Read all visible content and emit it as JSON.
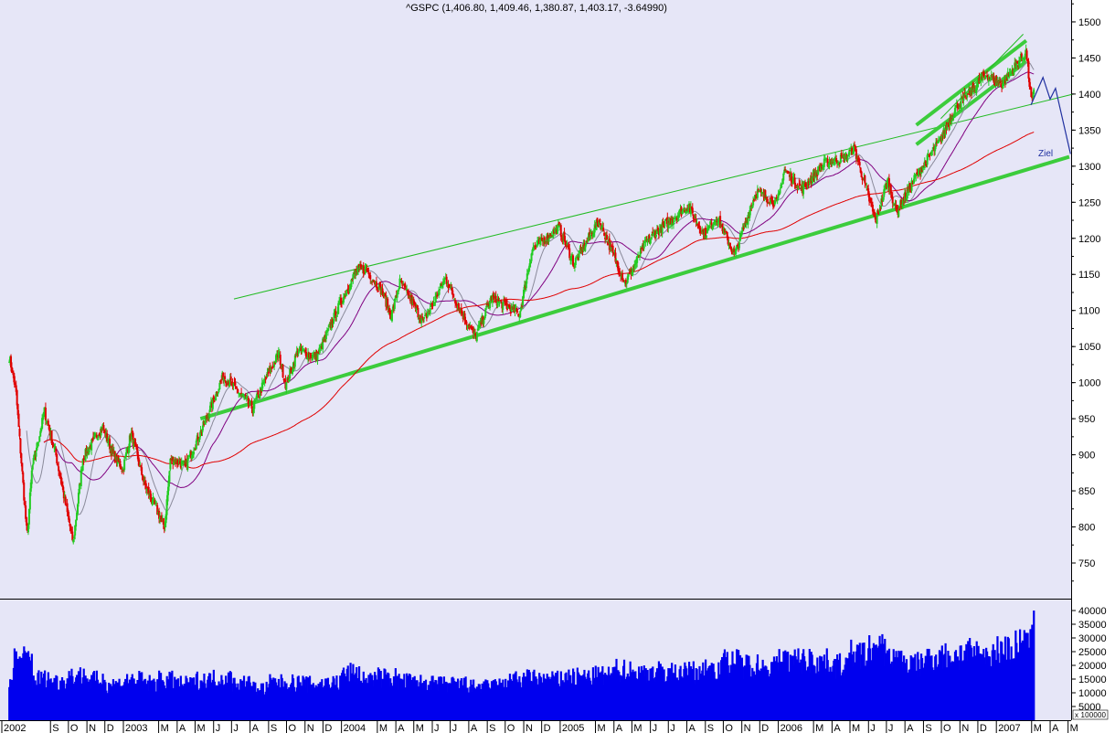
{
  "chart_data": {
    "type": "candlestick",
    "title": "^GSPC (1,406.80, 1,409.46, 1,380.87, 1,403.17, -3.64990)",
    "price_axis": {
      "ticks": [
        750,
        800,
        850,
        900,
        950,
        1000,
        1050,
        1100,
        1150,
        1200,
        1250,
        1300,
        1350,
        1400,
        1450,
        1500
      ],
      "range": [
        705,
        1530
      ],
      "position": "right"
    },
    "volume_axis": {
      "ticks": [
        5000,
        10000,
        15000,
        20000,
        25000,
        30000,
        35000,
        40000
      ],
      "multiplier_label": "x 100000",
      "range": [
        0,
        43000
      ]
    },
    "x_axis": {
      "range": [
        "2002-06-24",
        "2007-05-31"
      ],
      "labels": [
        {
          "date": "2002-07-01",
          "text": "2002"
        },
        {
          "date": "2002-09-01",
          "text": "S"
        },
        {
          "date": "2002-10-01",
          "text": "O"
        },
        {
          "date": "2002-11-01",
          "text": "N"
        },
        {
          "date": "2002-12-01",
          "text": "D"
        },
        {
          "date": "2003-01-01",
          "text": "2003"
        },
        {
          "date": "2003-03-01",
          "text": "M"
        },
        {
          "date": "2003-04-01",
          "text": "A"
        },
        {
          "date": "2003-05-01",
          "text": "M"
        },
        {
          "date": "2003-06-01",
          "text": "J"
        },
        {
          "date": "2003-07-01",
          "text": "J"
        },
        {
          "date": "2003-08-01",
          "text": "A"
        },
        {
          "date": "2003-09-01",
          "text": "S"
        },
        {
          "date": "2003-10-01",
          "text": "O"
        },
        {
          "date": "2003-11-01",
          "text": "N"
        },
        {
          "date": "2003-12-01",
          "text": "D"
        },
        {
          "date": "2004-01-01",
          "text": "2004"
        },
        {
          "date": "2004-03-01",
          "text": "M"
        },
        {
          "date": "2004-04-01",
          "text": "A"
        },
        {
          "date": "2004-05-01",
          "text": "M"
        },
        {
          "date": "2004-06-01",
          "text": "J"
        },
        {
          "date": "2004-07-01",
          "text": "J"
        },
        {
          "date": "2004-08-01",
          "text": "A"
        },
        {
          "date": "2004-09-01",
          "text": "S"
        },
        {
          "date": "2004-10-01",
          "text": "O"
        },
        {
          "date": "2004-11-01",
          "text": "N"
        },
        {
          "date": "2004-12-01",
          "text": "D"
        },
        {
          "date": "2005-01-01",
          "text": "2005"
        },
        {
          "date": "2005-03-01",
          "text": "M"
        },
        {
          "date": "2005-04-01",
          "text": "A"
        },
        {
          "date": "2005-05-01",
          "text": "M"
        },
        {
          "date": "2005-06-01",
          "text": "J"
        },
        {
          "date": "2005-07-01",
          "text": "J"
        },
        {
          "date": "2005-08-01",
          "text": "A"
        },
        {
          "date": "2005-09-01",
          "text": "S"
        },
        {
          "date": "2005-10-01",
          "text": "O"
        },
        {
          "date": "2005-11-01",
          "text": "N"
        },
        {
          "date": "2005-12-01",
          "text": "D"
        },
        {
          "date": "2006-01-01",
          "text": "2006"
        },
        {
          "date": "2006-03-01",
          "text": "M"
        },
        {
          "date": "2006-04-01",
          "text": "A"
        },
        {
          "date": "2006-05-01",
          "text": "M"
        },
        {
          "date": "2006-06-01",
          "text": "J"
        },
        {
          "date": "2006-07-01",
          "text": "J"
        },
        {
          "date": "2006-08-01",
          "text": "A"
        },
        {
          "date": "2006-09-01",
          "text": "S"
        },
        {
          "date": "2006-10-01",
          "text": "O"
        },
        {
          "date": "2006-11-01",
          "text": "N"
        },
        {
          "date": "2006-12-01",
          "text": "D"
        },
        {
          "date": "2007-01-01",
          "text": "2007"
        },
        {
          "date": "2007-03-01",
          "text": "M"
        },
        {
          "date": "2007-04-01",
          "text": "A"
        },
        {
          "date": "2007-05-01",
          "text": "M"
        }
      ]
    },
    "close": [
      [
        "2002-06-24",
        1036
      ],
      [
        "2002-07-05",
        990
      ],
      [
        "2002-07-24",
        785
      ],
      [
        "2002-08-01",
        880
      ],
      [
        "2002-08-22",
        960
      ],
      [
        "2002-09-10",
        900
      ],
      [
        "2002-09-30",
        815
      ],
      [
        "2002-10-09",
        778
      ],
      [
        "2002-10-25",
        895
      ],
      [
        "2002-11-27",
        940
      ],
      [
        "2002-12-15",
        900
      ],
      [
        "2002-12-31",
        880
      ],
      [
        "2003-01-14",
        930
      ],
      [
        "2003-02-05",
        860
      ],
      [
        "2003-03-11",
        800
      ],
      [
        "2003-03-21",
        895
      ],
      [
        "2003-04-15",
        885
      ],
      [
        "2003-05-15",
        940
      ],
      [
        "2003-06-17",
        1010
      ],
      [
        "2003-07-10",
        990
      ],
      [
        "2003-08-05",
        965
      ],
      [
        "2003-08-29",
        1008
      ],
      [
        "2003-09-18",
        1040
      ],
      [
        "2003-09-30",
        996
      ],
      [
        "2003-10-20",
        1045
      ],
      [
        "2003-11-20",
        1035
      ],
      [
        "2003-12-31",
        1112
      ],
      [
        "2004-01-26",
        1155
      ],
      [
        "2004-02-11",
        1157
      ],
      [
        "2004-03-10",
        1125
      ],
      [
        "2004-03-24",
        1092
      ],
      [
        "2004-04-08",
        1140
      ],
      [
        "2004-05-17",
        1084
      ],
      [
        "2004-06-23",
        1145
      ],
      [
        "2004-07-15",
        1105
      ],
      [
        "2004-08-12",
        1063
      ],
      [
        "2004-09-08",
        1118
      ],
      [
        "2004-10-25",
        1095
      ],
      [
        "2004-11-15",
        1185
      ],
      [
        "2004-12-30",
        1215
      ],
      [
        "2005-01-24",
        1165
      ],
      [
        "2005-03-07",
        1225
      ],
      [
        "2005-04-20",
        1138
      ],
      [
        "2005-05-25",
        1195
      ],
      [
        "2005-06-20",
        1215
      ],
      [
        "2005-08-03",
        1245
      ],
      [
        "2005-08-30",
        1205
      ],
      [
        "2005-09-20",
        1230
      ],
      [
        "2005-10-20",
        1177
      ],
      [
        "2005-11-25",
        1265
      ],
      [
        "2005-12-30",
        1248
      ],
      [
        "2006-01-11",
        1295
      ],
      [
        "2006-02-10",
        1268
      ],
      [
        "2006-03-20",
        1305
      ],
      [
        "2006-04-21",
        1311
      ],
      [
        "2006-05-08",
        1325
      ],
      [
        "2006-06-13",
        1223
      ],
      [
        "2006-07-03",
        1280
      ],
      [
        "2006-07-18",
        1236
      ],
      [
        "2006-08-15",
        1280
      ],
      [
        "2006-09-29",
        1336
      ],
      [
        "2006-10-25",
        1382
      ],
      [
        "2006-11-22",
        1406
      ],
      [
        "2006-12-15",
        1427
      ],
      [
        "2007-01-10",
        1414
      ],
      [
        "2007-02-20",
        1459
      ],
      [
        "2007-02-27",
        1400
      ],
      [
        "2007-03-02",
        1387
      ],
      [
        "2007-03-05",
        1403
      ]
    ],
    "volume_monthly": [
      [
        "2002-07",
        22000
      ],
      [
        "2002-08",
        15000
      ],
      [
        "2002-09",
        14000
      ],
      [
        "2002-10",
        16000
      ],
      [
        "2002-11",
        14500
      ],
      [
        "2002-12",
        13000
      ],
      [
        "2003-01",
        14500
      ],
      [
        "2003-02",
        13500
      ],
      [
        "2003-03",
        14500
      ],
      [
        "2003-04",
        13000
      ],
      [
        "2003-05",
        14500
      ],
      [
        "2003-06",
        15000
      ],
      [
        "2003-07",
        13500
      ],
      [
        "2003-08",
        11500
      ],
      [
        "2003-09",
        13500
      ],
      [
        "2003-10",
        13500
      ],
      [
        "2003-11",
        13000
      ],
      [
        "2003-12",
        13500
      ],
      [
        "2004-01",
        17000
      ],
      [
        "2004-02",
        14500
      ],
      [
        "2004-03",
        15500
      ],
      [
        "2004-04",
        14000
      ],
      [
        "2004-05",
        13500
      ],
      [
        "2004-06",
        13000
      ],
      [
        "2004-07",
        13000
      ],
      [
        "2004-08",
        12000
      ],
      [
        "2004-09",
        12500
      ],
      [
        "2004-10",
        14500
      ],
      [
        "2004-11",
        15000
      ],
      [
        "2004-12",
        14500
      ],
      [
        "2005-01",
        15500
      ],
      [
        "2005-02",
        15500
      ],
      [
        "2005-03",
        16000
      ],
      [
        "2005-04",
        18000
      ],
      [
        "2005-05",
        17000
      ],
      [
        "2005-06",
        17500
      ],
      [
        "2005-07",
        17000
      ],
      [
        "2005-08",
        17500
      ],
      [
        "2005-09",
        19000
      ],
      [
        "2005-10",
        21000
      ],
      [
        "2005-11",
        20000
      ],
      [
        "2005-12",
        19000
      ],
      [
        "2006-01",
        21500
      ],
      [
        "2006-02",
        21500
      ],
      [
        "2006-03",
        21000
      ],
      [
        "2006-04",
        20000
      ],
      [
        "2006-05",
        23500
      ],
      [
        "2006-06",
        25500
      ],
      [
        "2006-07",
        22000
      ],
      [
        "2006-08",
        20000
      ],
      [
        "2006-09",
        22500
      ],
      [
        "2006-10",
        23000
      ],
      [
        "2006-11",
        24000
      ],
      [
        "2006-12",
        23000
      ],
      [
        "2007-01",
        25500
      ],
      [
        "2007-02",
        27000
      ],
      [
        "2007-03",
        40000
      ]
    ],
    "moving_averages": [
      {
        "period": 20,
        "color": "#8a8a9a"
      },
      {
        "period": 50,
        "color": "#800080"
      },
      {
        "period": 200,
        "color": "#e00000"
      }
    ],
    "trendlines": [
      {
        "from": [
          "2003-05-10",
          950
        ],
        "to": [
          "2007-05-03",
          1313
        ],
        "color": "#3ccc3c",
        "weight": "thick"
      },
      {
        "from": [
          "2003-07-05",
          1116
        ],
        "to": [
          "2007-05-10",
          1400
        ],
        "color": "#22bb22",
        "weight": "thin"
      },
      {
        "from": [
          "2006-08-20",
          1357
        ],
        "to": [
          "2007-02-20",
          1474
        ],
        "color": "#3ccc3c",
        "weight": "thick"
      },
      {
        "from": [
          "2006-08-20",
          1330
        ],
        "to": [
          "2007-02-20",
          1445
        ],
        "color": "#3ccc3c",
        "weight": "thick"
      },
      {
        "from": [
          "2006-09-30",
          1366
        ],
        "to": [
          "2007-02-15",
          1483
        ],
        "color": "#22bb22",
        "weight": "thin"
      }
    ],
    "projection": {
      "color": "#2030a0",
      "points": [
        [
          "2007-02-28",
          1385
        ],
        [
          "2007-03-20",
          1423
        ],
        [
          "2007-04-01",
          1393
        ],
        [
          "2007-04-10",
          1408
        ],
        [
          "2007-05-05",
          1317
        ]
      ],
      "label": "Ziel"
    },
    "colors": {
      "background": "#e6e6f7",
      "up": "#22cc22",
      "down": "#e00000",
      "volume": "#0000ee"
    },
    "grid": false,
    "legend": "none"
  }
}
